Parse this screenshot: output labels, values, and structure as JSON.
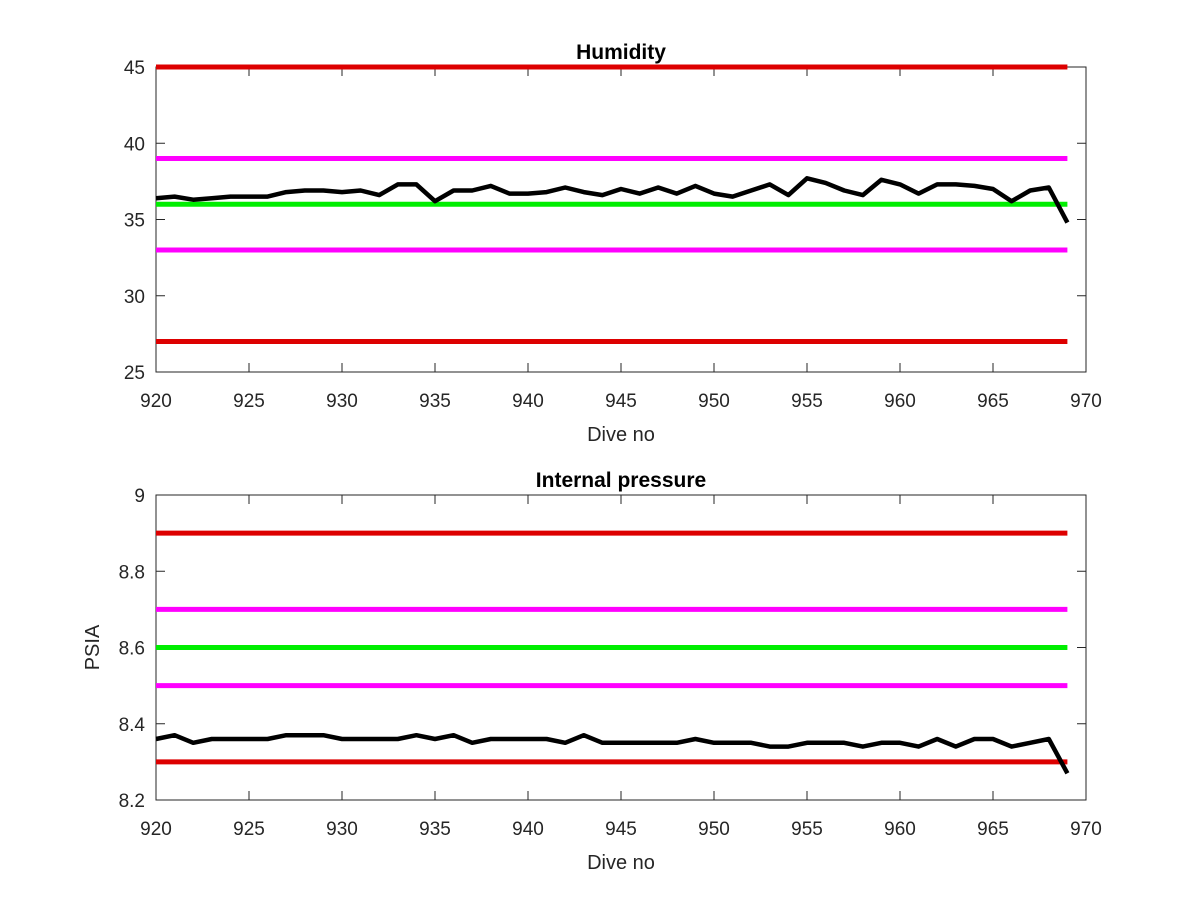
{
  "chart_data": [
    {
      "type": "line",
      "title": "Humidity",
      "xlabel": "Dive no",
      "ylabel": "",
      "xlim": [
        920,
        970
      ],
      "ylim": [
        25,
        45
      ],
      "xticks": [
        "920",
        "925",
        "930",
        "935",
        "940",
        "945",
        "950",
        "955",
        "960",
        "965",
        "970"
      ],
      "yticks": [
        "25",
        "30",
        "35",
        "40",
        "45"
      ],
      "grid": false,
      "colors": {
        "red": "#dd0000",
        "magenta": "#ff00ff",
        "green": "#00ee00",
        "black": "#000000"
      },
      "reference_lines": [
        {
          "y": 45,
          "color": "#dd0000"
        },
        {
          "y": 39,
          "color": "#ff00ff"
        },
        {
          "y": 36,
          "color": "#00ee00"
        },
        {
          "y": 33,
          "color": "#ff00ff"
        },
        {
          "y": 27,
          "color": "#dd0000"
        }
      ],
      "series": [
        {
          "color": "#000000",
          "x": [
            920,
            921,
            922,
            923,
            924,
            925,
            926,
            927,
            928,
            929,
            930,
            931,
            932,
            933,
            934,
            935,
            936,
            937,
            938,
            939,
            940,
            941,
            942,
            943,
            944,
            945,
            946,
            947,
            948,
            949,
            950,
            951,
            952,
            953,
            954,
            955,
            956,
            957,
            958,
            959,
            960,
            961,
            962,
            963,
            964,
            965,
            966,
            967,
            968,
            969
          ],
          "values": [
            36.4,
            36.5,
            36.3,
            36.4,
            36.5,
            36.5,
            36.5,
            36.8,
            36.9,
            36.9,
            36.8,
            36.9,
            36.6,
            37.3,
            37.3,
            36.2,
            36.9,
            36.9,
            37.2,
            36.7,
            36.7,
            36.8,
            37.1,
            36.8,
            36.6,
            37.0,
            36.7,
            37.1,
            36.7,
            37.2,
            36.7,
            36.5,
            36.9,
            37.3,
            36.6,
            37.7,
            37.4,
            36.9,
            36.6,
            37.6,
            37.3,
            36.7,
            37.3,
            37.3,
            37.2,
            37.0,
            36.2,
            36.9,
            37.1,
            34.8
          ]
        }
      ]
    },
    {
      "type": "line",
      "title": "Internal pressure",
      "xlabel": "Dive no",
      "ylabel": "PSIA",
      "xlim": [
        920,
        970
      ],
      "ylim": [
        8.2,
        9.0
      ],
      "xticks": [
        "920",
        "925",
        "930",
        "935",
        "940",
        "945",
        "950",
        "955",
        "960",
        "965",
        "970"
      ],
      "yticks": [
        "8.2",
        "8.4",
        "8.6",
        "8.8",
        "9"
      ],
      "grid": false,
      "colors": {
        "red": "#dd0000",
        "magenta": "#ff00ff",
        "green": "#00ee00",
        "black": "#000000"
      },
      "reference_lines": [
        {
          "y": 8.9,
          "color": "#dd0000"
        },
        {
          "y": 8.7,
          "color": "#ff00ff"
        },
        {
          "y": 8.6,
          "color": "#00ee00"
        },
        {
          "y": 8.5,
          "color": "#ff00ff"
        },
        {
          "y": 8.3,
          "color": "#dd0000"
        }
      ],
      "series": [
        {
          "color": "#000000",
          "x": [
            920,
            921,
            922,
            923,
            924,
            925,
            926,
            927,
            928,
            929,
            930,
            931,
            932,
            933,
            934,
            935,
            936,
            937,
            938,
            939,
            940,
            941,
            942,
            943,
            944,
            945,
            946,
            947,
            948,
            949,
            950,
            951,
            952,
            953,
            954,
            955,
            956,
            957,
            958,
            959,
            960,
            961,
            962,
            963,
            964,
            965,
            966,
            967,
            968,
            969
          ],
          "values": [
            8.36,
            8.37,
            8.35,
            8.36,
            8.36,
            8.36,
            8.36,
            8.37,
            8.37,
            8.37,
            8.36,
            8.36,
            8.36,
            8.36,
            8.37,
            8.36,
            8.37,
            8.35,
            8.36,
            8.36,
            8.36,
            8.36,
            8.35,
            8.37,
            8.35,
            8.35,
            8.35,
            8.35,
            8.35,
            8.36,
            8.35,
            8.35,
            8.35,
            8.34,
            8.34,
            8.35,
            8.35,
            8.35,
            8.34,
            8.35,
            8.35,
            8.34,
            8.36,
            8.34,
            8.36,
            8.36,
            8.34,
            8.35,
            8.36,
            8.27
          ]
        }
      ]
    }
  ]
}
